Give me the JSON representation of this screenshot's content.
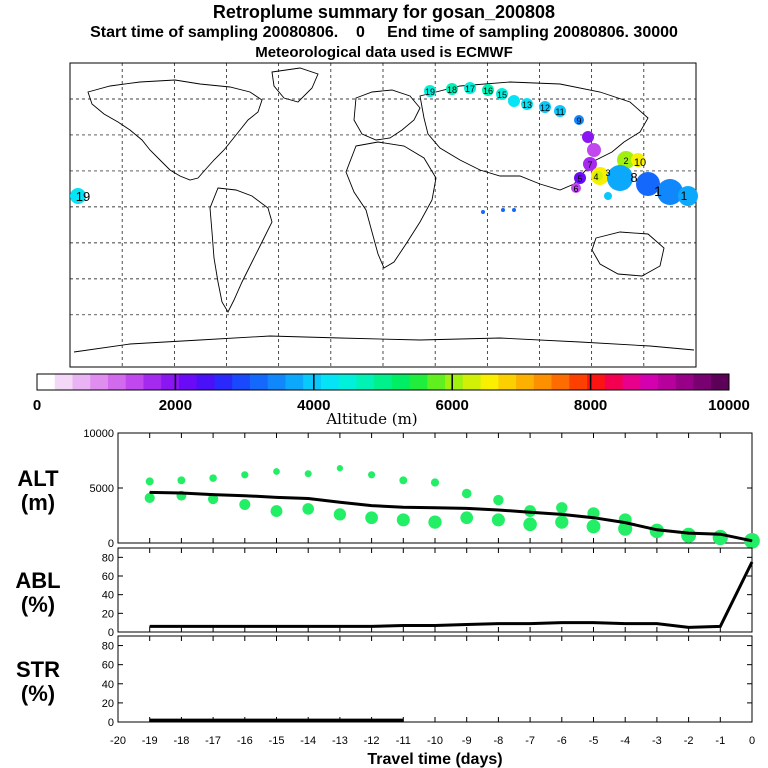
{
  "header": {
    "title": "Retroplume summary for gosan_200808",
    "sampling_line": "Start time of sampling 20080806.    0     End time of sampling 20080806. 30000",
    "met_line": "Meteorological data used is ECMWF"
  },
  "colorbar": {
    "ticks": [
      "0",
      "2000",
      "4000",
      "6000",
      "8000",
      "10000"
    ],
    "label": "Altitude  (m)",
    "colors": [
      "#ffffff",
      "#f4d8f8",
      "#eab4f4",
      "#df8ef0",
      "#d26aee",
      "#c048ee",
      "#a52aef",
      "#8a16f2",
      "#6a0af6",
      "#4a10f8",
      "#2a28fa",
      "#1a48fc",
      "#1468fc",
      "#1088fc",
      "#0ca8fc",
      "#08c8fc",
      "#04e4f6",
      "#00f0dc",
      "#00f2b4",
      "#00f08c",
      "#00ee64",
      "#20ee3c",
      "#60f020",
      "#a0f010",
      "#d0f008",
      "#f8f000",
      "#fcd000",
      "#fcb000",
      "#fc9000",
      "#fc6c00",
      "#fc4000",
      "#fc1414",
      "#f40050",
      "#e8008c",
      "#d400b0",
      "#b8009c",
      "#980088",
      "#780070",
      "#5c0058"
    ]
  },
  "map": {
    "plume_labels": [
      "19",
      "18",
      "17",
      "16",
      "15",
      "13",
      "12",
      "11",
      "10",
      "9",
      "8",
      "7",
      "6",
      "5",
      "4",
      "3",
      "2",
      "1"
    ]
  },
  "chart_data": {
    "type": "line",
    "xlabel": "Travel time (days)",
    "x_ticks": [
      -20,
      -19,
      -18,
      -17,
      -16,
      -15,
      -14,
      -13,
      -12,
      -11,
      -10,
      -9,
      -8,
      -7,
      -6,
      -5,
      -4,
      -3,
      -2,
      -1,
      0
    ],
    "xlim": [
      -20,
      0
    ],
    "panels": [
      {
        "name": "ALT",
        "ylabel": "ALT",
        "yunit": "(m)",
        "ylim": [
          0,
          10000
        ],
        "y_ticks": [
          0,
          5000,
          10000
        ],
        "series": [
          {
            "name": "mean altitude",
            "color": "#000000",
            "x": [
              -19,
              -18,
              -17,
              -16,
              -15,
              -14,
              -13,
              -12,
              -11,
              -10,
              -9,
              -8,
              -7,
              -6,
              -5,
              -4,
              -3,
              -2,
              -1,
              0
            ],
            "y": [
              4600,
              4550,
              4400,
              4300,
              4150,
              4050,
              3700,
              3400,
              3250,
              3200,
              3150,
              3000,
              2800,
              2600,
              2300,
              1850,
              1200,
              900,
              800,
              200
            ]
          }
        ],
        "scatter": {
          "color": "#22ee66",
          "x": [
            -19,
            -19,
            -18,
            -18,
            -17,
            -17,
            -16,
            -16,
            -15,
            -15,
            -14,
            -14,
            -13,
            -13,
            -12,
            -12,
            -11,
            -11,
            -10,
            -10,
            -9,
            -9,
            -8,
            -8,
            -7,
            -7,
            -6,
            -6,
            -5,
            -5,
            -4,
            -4,
            -3,
            -2,
            -1,
            0
          ],
          "y": [
            5600,
            4100,
            5700,
            4300,
            5900,
            4000,
            6200,
            3500,
            6500,
            2900,
            6300,
            3100,
            6800,
            2600,
            6200,
            2300,
            5700,
            2100,
            5500,
            1900,
            4500,
            2300,
            3900,
            2100,
            2900,
            1700,
            3200,
            1900,
            2700,
            1500,
            2100,
            1300,
            1100,
            700,
            500,
            200
          ]
        }
      },
      {
        "name": "ABL",
        "ylabel": "ABL",
        "yunit": "(%)",
        "ylim": [
          0,
          90
        ],
        "y_ticks": [
          0,
          20,
          40,
          60,
          80
        ],
        "series": [
          {
            "name": "fraction in ABL",
            "color": "#000000",
            "x": [
              -19,
              -18,
              -17,
              -16,
              -15,
              -14,
              -13,
              -12,
              -11,
              -10,
              -9,
              -8,
              -7,
              -6,
              -5,
              -4,
              -3,
              -2,
              -1,
              0
            ],
            "y": [
              6,
              6,
              6,
              6,
              6,
              6,
              6,
              6,
              7,
              7,
              8,
              9,
              9,
              10,
              10,
              9,
              9,
              5,
              6,
              75
            ]
          }
        ]
      },
      {
        "name": "STR",
        "ylabel": "STR",
        "yunit": "(%)",
        "ylim": [
          0,
          90
        ],
        "y_ticks": [
          0,
          20,
          40,
          60,
          80
        ],
        "series": [
          {
            "name": "fraction in stratosphere",
            "color": "#000000",
            "x": [
              -19,
              -18,
              -17,
              -16,
              -15,
              -14,
              -13,
              -12,
              -11
            ],
            "y": [
              2,
              2,
              2,
              2,
              2,
              2,
              2,
              2,
              2
            ]
          }
        ]
      }
    ]
  }
}
